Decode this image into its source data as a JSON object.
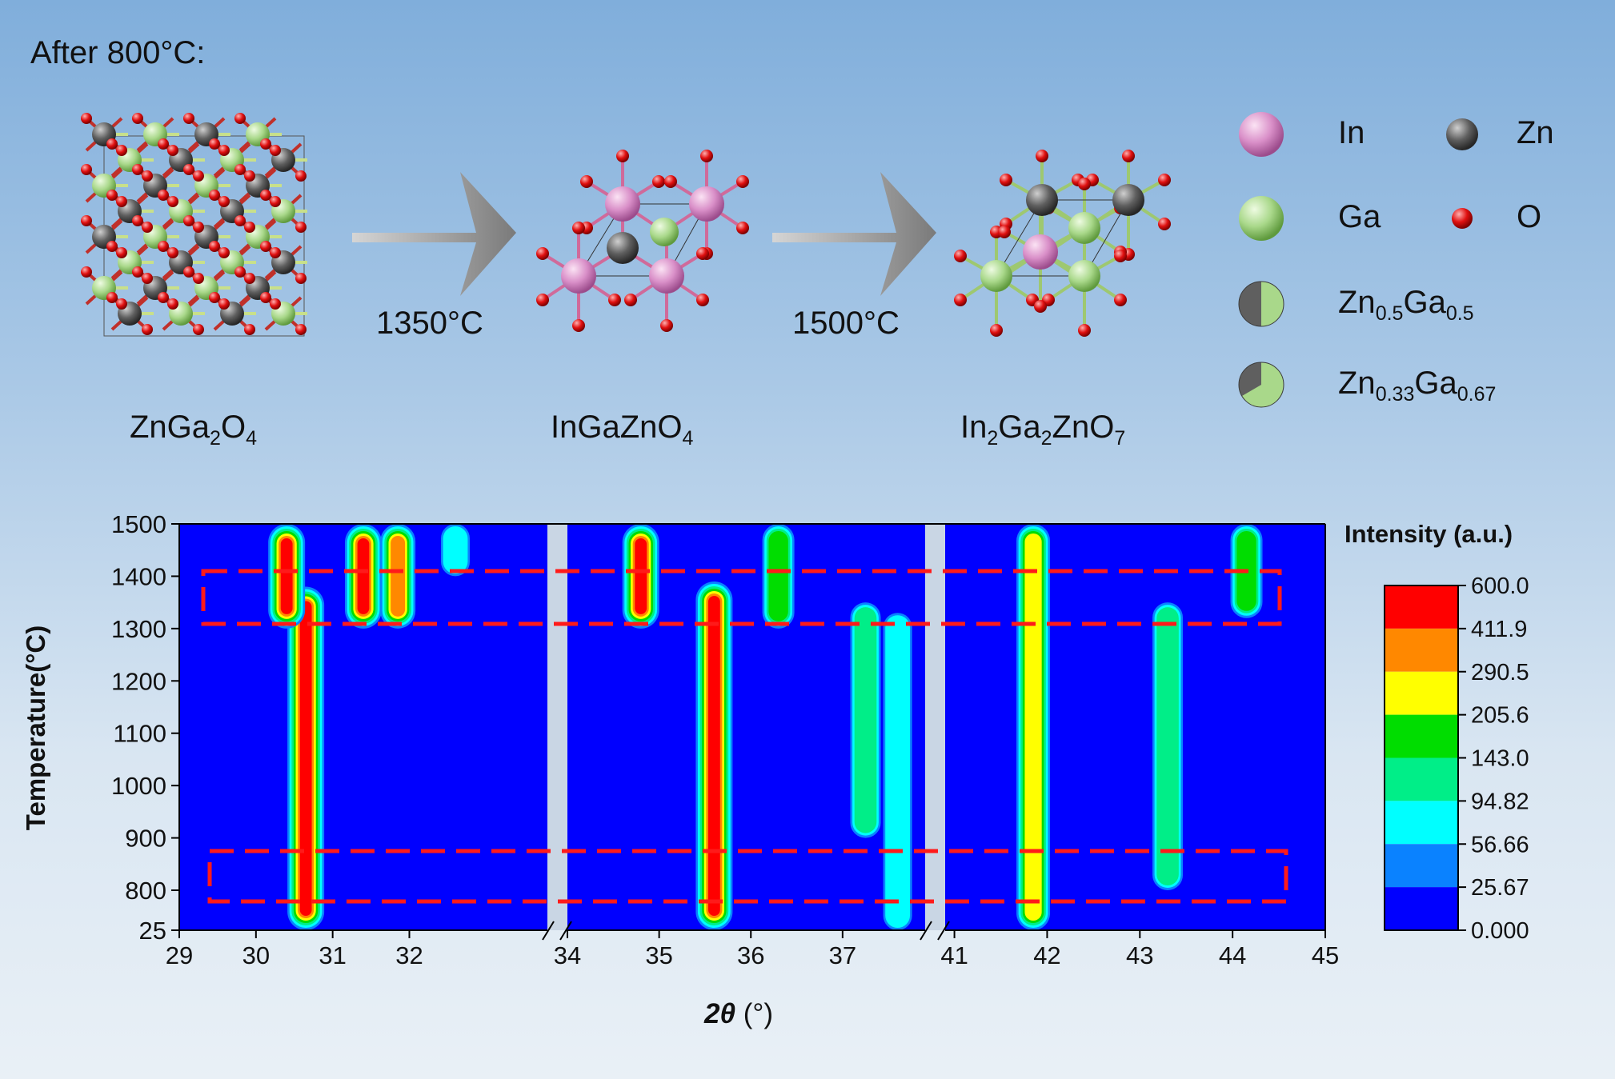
{
  "header": {
    "after_label": "After 800°C:"
  },
  "structures": [
    {
      "prefix": "ZnGa",
      "sub1": "2",
      "mid": "O",
      "sub2": "4",
      "tail": ""
    },
    {
      "prefix": "InGaZnO",
      "sub1": "4",
      "mid": "",
      "sub2": "",
      "tail": ""
    },
    {
      "prefix": "In",
      "sub1": "2",
      "mid": "Ga",
      "sub2": "2",
      "tail": "ZnO",
      "sub3": "7"
    }
  ],
  "arrows": [
    {
      "temperature": "1350°C"
    },
    {
      "temperature": "1500°C"
    }
  ],
  "legend": {
    "in": "In",
    "zn": "Zn",
    "ga": "Ga",
    "o": "O",
    "mix1": {
      "a": "Zn",
      "a_sub": "0.5",
      "b": "Ga",
      "b_sub": "0.5"
    },
    "mix2": {
      "a": "Zn",
      "a_sub": "0.33",
      "b": "Ga",
      "b_sub": "0.67"
    }
  },
  "colors": {
    "in": "#d98fc8",
    "zn": "#5f5f5f",
    "ga": "#a9d88a",
    "o": "#e01010",
    "levels": [
      "#0000ff",
      "#0a82ff",
      "#00ffff",
      "#00ee88",
      "#00dd00",
      "#ffff00",
      "#ff8800",
      "#ff0000"
    ]
  },
  "chart_data": {
    "type": "heatmap",
    "title": "",
    "xlabel_italic": "2θ",
    "xlabel_unit": " (°)",
    "ylabel": "Temperature(°C)",
    "y_ticks": [
      "25",
      "800",
      "900",
      "1000",
      "1100",
      "1200",
      "1300",
      "1400",
      "1500"
    ],
    "x_segments": [
      {
        "range": [
          29,
          33.8
        ],
        "ticks": [
          "29",
          "30",
          "31",
          "32"
        ]
      },
      {
        "range": [
          34,
          37.9
        ],
        "ticks": [
          "34",
          "35",
          "36",
          "37"
        ]
      },
      {
        "range": [
          40.9,
          45
        ],
        "ticks": [
          "41",
          "42",
          "43",
          "44",
          "45"
        ]
      }
    ],
    "colorbar": {
      "title": "Intensity (a.u.)",
      "levels": [
        "600.0",
        "411.9",
        "290.5",
        "205.6",
        "143.0",
        "94.82",
        "56.66",
        "25.67",
        "0.000"
      ]
    },
    "peaks": [
      {
        "x": 30.65,
        "t": [
          25,
          1380
        ],
        "value": 600
      },
      {
        "x": 30.4,
        "t": [
          1300,
          1500
        ],
        "value": 600
      },
      {
        "x": 31.4,
        "t": [
          1300,
          1500
        ],
        "value": 411.9
      },
      {
        "x": 31.85,
        "t": [
          1300,
          1500
        ],
        "value": 290.5
      },
      {
        "x": 32.6,
        "t": [
          1400,
          1500
        ],
        "value": 56.66
      },
      {
        "x": 34.8,
        "t": [
          1300,
          1500
        ],
        "value": 600
      },
      {
        "x": 35.6,
        "t": [
          25,
          1390
        ],
        "value": 600
      },
      {
        "x": 36.3,
        "t": [
          1300,
          1500
        ],
        "value": 143.0
      },
      {
        "x": 37.25,
        "t": [
          900,
          1350
        ],
        "value": 94.82
      },
      {
        "x": 37.6,
        "t": [
          25,
          1330
        ],
        "value": 56.66
      },
      {
        "x": 41.85,
        "t": [
          25,
          1500
        ],
        "value": 205.6
      },
      {
        "x": 43.3,
        "t": [
          800,
          1350
        ],
        "value": 94.82
      },
      {
        "x": 44.15,
        "t": [
          1320,
          1500
        ],
        "value": 143.0
      }
    ],
    "dashed_boxes": [
      {
        "label": "",
        "t_range": [
          1300,
          1400
        ]
      },
      {
        "label": "",
        "t_range": [
          760,
          860
        ]
      }
    ],
    "grid": false
  }
}
